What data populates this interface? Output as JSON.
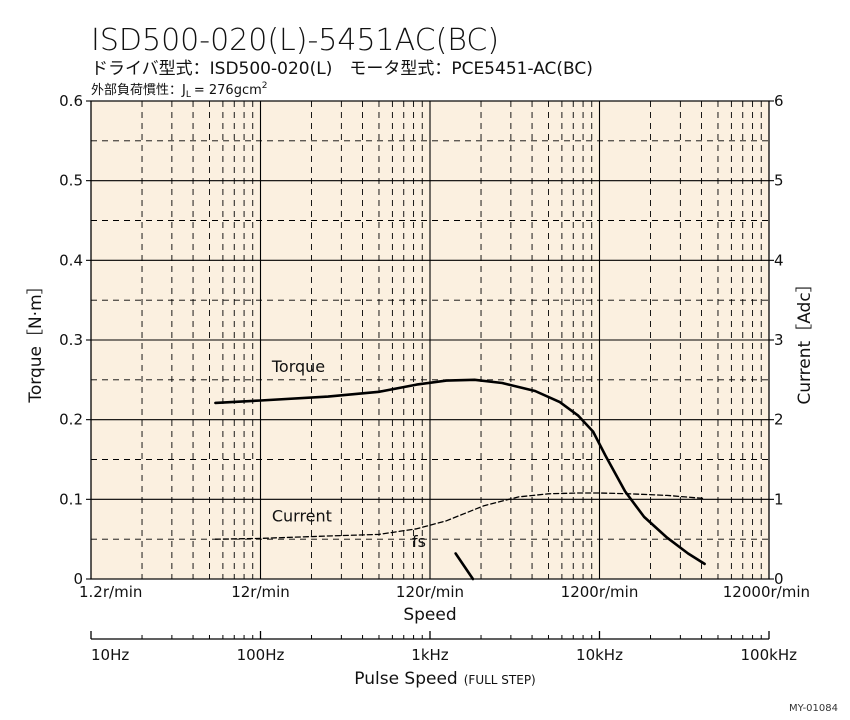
{
  "header": {
    "title": "ISD500-020(L)-5451AC(BC)",
    "subtitle": "ドライバ型式：ISD500-020(L)　モータ型式：PCE5451-AC(BC)",
    "inertia_prefix": "外部負荷慣性：J",
    "inertia_subscript": "L",
    "inertia_value": "= 276gcm",
    "inertia_superscript": "2"
  },
  "figure_code": "MY-01084",
  "chart_data": {
    "type": "line",
    "xscale": "log",
    "xlim": [
      1.2,
      12000
    ],
    "xlabel": "Speed",
    "x_tick_values": [
      1.2,
      12,
      120,
      1200,
      12000
    ],
    "x_tick_labels": [
      "1.2r/min",
      "12r/min",
      "120r/min",
      "1200r/min",
      "12000r/min"
    ],
    "x2label": "Pulse Speed",
    "x2label_note": "(FULL STEP)",
    "x2_tick_values": [
      1.2,
      12,
      120,
      1200,
      12000
    ],
    "x2_tick_labels": [
      "10Hz",
      "100Hz",
      "1kHz",
      "10kHz",
      "100kHz"
    ],
    "ylabel": "Torque［N·m］",
    "ylim": [
      0,
      0.6
    ],
    "y_tick_values": [
      0,
      0.1,
      0.2,
      0.3,
      0.4,
      0.5,
      0.6
    ],
    "y_tick_labels": [
      "0",
      "0.1",
      "0.2",
      "0.3",
      "0.4",
      "0.5",
      "0.6"
    ],
    "y2label": "Current［Adc］",
    "y2lim": [
      0,
      6
    ],
    "y2_tick_values": [
      0,
      1,
      2,
      3,
      4,
      5,
      6
    ],
    "y2_tick_labels": [
      "0",
      "1",
      "2",
      "3",
      "4",
      "5",
      "6"
    ],
    "grid": true,
    "series": [
      {
        "name": "Torque",
        "axis": "left",
        "style": "solid",
        "color": "#000000",
        "x": [
          6.5,
          12,
          30,
          60,
          100,
          150,
          220,
          320,
          500,
          700,
          900,
          1100,
          1300,
          1700,
          2200,
          3000,
          4000,
          5000
        ],
        "y": [
          0.221,
          0.224,
          0.229,
          0.235,
          0.244,
          0.249,
          0.25,
          0.246,
          0.236,
          0.222,
          0.205,
          0.185,
          0.155,
          0.11,
          0.078,
          0.052,
          0.032,
          0.019
        ]
      },
      {
        "name": "Current",
        "axis": "right",
        "style": "dashed",
        "color": "#000000",
        "x": [
          6.5,
          12,
          30,
          60,
          100,
          150,
          250,
          400,
          600,
          900,
          1200,
          1800,
          3000,
          5000
        ],
        "y": [
          0.5,
          0.51,
          0.54,
          0.56,
          0.63,
          0.73,
          0.92,
          1.03,
          1.07,
          1.08,
          1.08,
          1.07,
          1.05,
          1.01
        ]
      }
    ],
    "annotations": [
      {
        "text": "Torque",
        "x": 14,
        "y": 0.26,
        "axis": "left"
      },
      {
        "text": "Current",
        "x": 14,
        "y": 0.072,
        "axis": "left"
      },
      {
        "text": "fs",
        "x": 94,
        "y": 0.04,
        "axis": "left"
      }
    ],
    "fs_marker": {
      "x": [
        170,
        215
      ],
      "y": [
        0.032,
        0.0
      ]
    },
    "colors": {
      "plot_background": "#fbf0e0",
      "line": "#000000"
    }
  }
}
